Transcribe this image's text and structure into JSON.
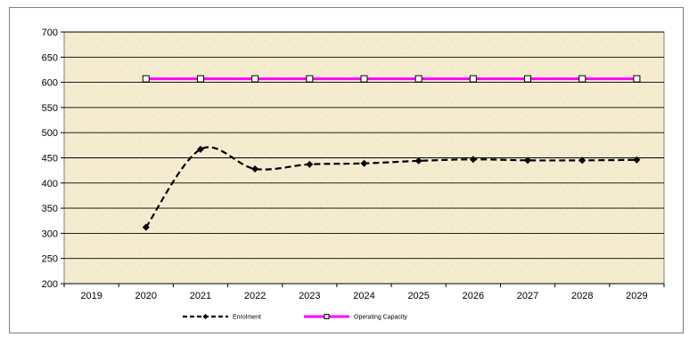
{
  "chart_data": {
    "type": "line",
    "title": "",
    "xlabel": "",
    "ylabel": "",
    "categories": [
      "2019",
      "2020",
      "2021",
      "2022",
      "2023",
      "2024",
      "2025",
      "2026",
      "2027",
      "2028",
      "2029"
    ],
    "ylim": [
      200,
      700
    ],
    "yticks": [
      200,
      250,
      300,
      350,
      400,
      450,
      500,
      550,
      600,
      650,
      700
    ],
    "grid": true,
    "legend": "bottom",
    "series": [
      {
        "name": "Enrolment",
        "color": "#000000",
        "style": "dashed-smooth",
        "marker": "diamond",
        "values": [
          null,
          312,
          467,
          428,
          437,
          439,
          444,
          447,
          445,
          445,
          446
        ]
      },
      {
        "name": "Operating Capacity",
        "color": "#ff00ff",
        "style": "solid",
        "marker": "square-open",
        "values": [
          null,
          607,
          607,
          607,
          607,
          607,
          607,
          607,
          607,
          607,
          607
        ]
      }
    ],
    "plot_background": "#f5ecd0"
  }
}
